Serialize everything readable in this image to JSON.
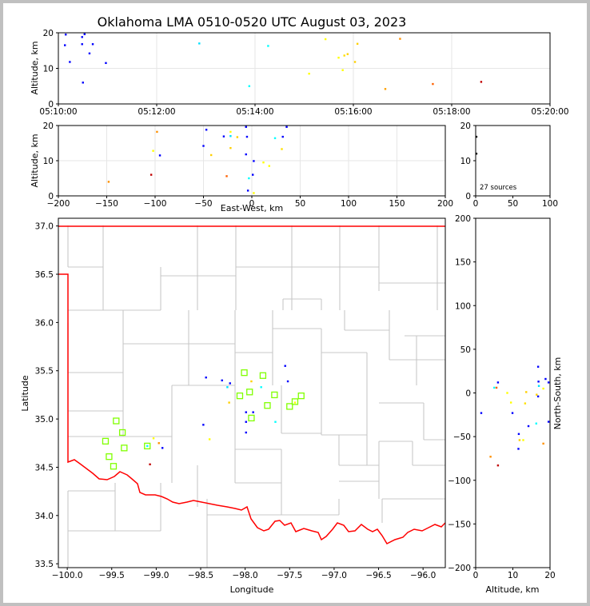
{
  "title": "Oklahoma LMA 0510-0520 UTC August 03, 2023",
  "colors": {
    "background": "#c0c0c0",
    "panel": "#ffffff",
    "border_state": "#ff0000",
    "county": "#c8c8c8",
    "grid": "#e6e6e6",
    "station": "#80ff00",
    "source_scale": [
      "#0000ff",
      "#00ffff",
      "#ffff00",
      "#ffd000",
      "#ff0000"
    ]
  },
  "chart_data": [
    {
      "type": "scatter",
      "panel": "time-height",
      "ylabel": "Altitude, km",
      "ylim": [
        0,
        20
      ],
      "yticks": [
        "0",
        "10",
        "20"
      ],
      "xlim": [
        "05:10:00",
        "05:20:00"
      ],
      "xticks": [
        "05:10:00",
        "05:12:00",
        "05:14:00",
        "05:16:00",
        "05:18:00",
        "05:20:00"
      ],
      "grid": true,
      "points": [
        {
          "t": "05:10:09",
          "alt": 19.5,
          "c": "#0000ff"
        },
        {
          "t": "05:10:08",
          "alt": 16.5,
          "c": "#0000ff"
        },
        {
          "t": "05:10:14",
          "alt": 11.8,
          "c": "#0000ff"
        },
        {
          "t": "05:10:29",
          "alt": 18.8,
          "c": "#0000ff"
        },
        {
          "t": "05:10:29",
          "alt": 16.8,
          "c": "#0000ff"
        },
        {
          "t": "05:10:32",
          "alt": 19.6,
          "c": "#0000ff"
        },
        {
          "t": "05:10:38",
          "alt": 14.2,
          "c": "#0000ff"
        },
        {
          "t": "05:10:42",
          "alt": 16.8,
          "c": "#0000ff"
        },
        {
          "t": "05:10:30",
          "alt": 6.0,
          "c": "#0000ff"
        },
        {
          "t": "05:10:58",
          "alt": 11.5,
          "c": "#0000ff"
        },
        {
          "t": "05:12:52",
          "alt": 17.0,
          "c": "#00e0ff"
        },
        {
          "t": "05:13:53",
          "alt": 5.0,
          "c": "#00ffff"
        },
        {
          "t": "05:14:16",
          "alt": 16.3,
          "c": "#00ffff"
        },
        {
          "t": "05:15:06",
          "alt": 8.5,
          "c": "#ffff00"
        },
        {
          "t": "05:15:26",
          "alt": 18.2,
          "c": "#ffff00"
        },
        {
          "t": "05:15:42",
          "alt": 13.0,
          "c": "#ffff00"
        },
        {
          "t": "05:15:47",
          "alt": 9.5,
          "c": "#ffff00"
        },
        {
          "t": "05:15:49",
          "alt": 13.6,
          "c": "#ffe000"
        },
        {
          "t": "05:15:53",
          "alt": 14.0,
          "c": "#ffd000"
        },
        {
          "t": "05:16:02",
          "alt": 11.8,
          "c": "#ffd000"
        },
        {
          "t": "05:16:05",
          "alt": 16.9,
          "c": "#ffd000"
        },
        {
          "t": "05:16:39",
          "alt": 4.2,
          "c": "#ffa000"
        },
        {
          "t": "05:16:57",
          "alt": 18.3,
          "c": "#ff9000"
        },
        {
          "t": "05:17:37",
          "alt": 5.6,
          "c": "#ff6000"
        },
        {
          "t": "05:18:36",
          "alt": 6.2,
          "c": "#c00000"
        }
      ]
    },
    {
      "type": "scatter",
      "panel": "east-west-height",
      "xlabel": "East-West, km",
      "ylabel": "Altitude, km",
      "xlim": [
        -200,
        200
      ],
      "ylim": [
        0,
        20
      ],
      "xticks": [
        "−200",
        "−150",
        "−100",
        "−50",
        "0",
        "50",
        "100",
        "150",
        "200"
      ],
      "yticks": [
        "0",
        "10",
        "20"
      ],
      "grid": true,
      "points": [
        {
          "x": -148,
          "alt": 4.0,
          "c": "#ff9000"
        },
        {
          "x": -98,
          "alt": 18.2,
          "c": "#ff9000"
        },
        {
          "x": -102,
          "alt": 12.8,
          "c": "#ffff00"
        },
        {
          "x": -95,
          "alt": 11.5,
          "c": "#0000ff"
        },
        {
          "x": -104,
          "alt": 6.0,
          "c": "#c00000"
        },
        {
          "x": -50,
          "alt": 14.2,
          "c": "#0000ff"
        },
        {
          "x": -47,
          "alt": 18.8,
          "c": "#0000ff"
        },
        {
          "x": -42,
          "alt": 11.6,
          "c": "#ffd000"
        },
        {
          "x": -29,
          "alt": 16.9,
          "c": "#0000ff"
        },
        {
          "x": -22,
          "alt": 18.2,
          "c": "#ffff00"
        },
        {
          "x": -22,
          "alt": 13.6,
          "c": "#ffd000"
        },
        {
          "x": -22,
          "alt": 17.0,
          "c": "#00e0ff"
        },
        {
          "x": -26,
          "alt": 5.6,
          "c": "#ff6000"
        },
        {
          "x": -15,
          "alt": 16.7,
          "c": "#ffd000"
        },
        {
          "x": -6,
          "alt": 19.6,
          "c": "#0000ff"
        },
        {
          "x": -5,
          "alt": 16.8,
          "c": "#0000ff"
        },
        {
          "x": -6,
          "alt": 11.8,
          "c": "#0000ff"
        },
        {
          "x": -4,
          "alt": 1.5,
          "c": "#0000ff"
        },
        {
          "x": -3,
          "alt": 5.0,
          "c": "#00ffff"
        },
        {
          "x": 2,
          "alt": 9.9,
          "c": "#0000ff"
        },
        {
          "x": 1,
          "alt": 6.0,
          "c": "#0000ff"
        },
        {
          "x": 2,
          "alt": 0.8,
          "c": "#ffff00"
        },
        {
          "x": 12,
          "alt": 9.5,
          "c": "#ffff00"
        },
        {
          "x": 18,
          "alt": 8.5,
          "c": "#ffff00"
        },
        {
          "x": 24,
          "alt": 16.4,
          "c": "#00ffff"
        },
        {
          "x": 31,
          "alt": 13.3,
          "c": "#ffe000"
        },
        {
          "x": 32,
          "alt": 16.8,
          "c": "#0000ff"
        },
        {
          "x": 36,
          "alt": 19.6,
          "c": "#0000ff"
        }
      ]
    },
    {
      "type": "histogram",
      "panel": "altitude-histogram",
      "xlim": [
        0,
        100
      ],
      "ylim": [
        0,
        20
      ],
      "xticks": [
        "0",
        "50",
        "100"
      ],
      "yticks": [
        "0",
        "10",
        "20"
      ],
      "annotation": "27 sources",
      "points": [
        {
          "count": 1,
          "alt": 16.8,
          "c": "#000000"
        },
        {
          "count": 1,
          "alt": 12.0,
          "c": "#000000"
        }
      ]
    },
    {
      "type": "scatter",
      "panel": "plan-view",
      "xlabel": "Longitude",
      "ylabel": "Latitude",
      "xlim": [
        -100.1,
        -95.75
      ],
      "ylim": [
        33.46,
        37.08
      ],
      "xticks": [
        "−100.0",
        "−99.5",
        "−99.0",
        "−98.5",
        "−98.0",
        "−97.5",
        "−97.0",
        "−96.5",
        "−96.0"
      ],
      "yticks": [
        "33.5",
        "34.0",
        "34.5",
        "35.0",
        "35.5",
        "36.0",
        "36.5",
        "37.0"
      ],
      "stations": [
        {
          "lon": -99.57,
          "lat": 34.77
        },
        {
          "lon": -99.53,
          "lat": 34.61
        },
        {
          "lon": -99.48,
          "lat": 34.51
        },
        {
          "lon": -99.45,
          "lat": 34.98
        },
        {
          "lon": -99.38,
          "lat": 34.86
        },
        {
          "lon": -99.36,
          "lat": 34.7
        },
        {
          "lon": -99.1,
          "lat": 34.72
        },
        {
          "lon": -98.06,
          "lat": 35.24
        },
        {
          "lon": -98.01,
          "lat": 35.48
        },
        {
          "lon": -97.95,
          "lat": 35.28
        },
        {
          "lon": -97.93,
          "lat": 35.01
        },
        {
          "lon": -97.8,
          "lat": 35.45
        },
        {
          "lon": -97.75,
          "lat": 35.14
        },
        {
          "lon": -97.67,
          "lat": 35.25
        },
        {
          "lon": -97.5,
          "lat": 35.13
        },
        {
          "lon": -97.44,
          "lat": 35.18
        },
        {
          "lon": -97.37,
          "lat": 35.24
        }
      ],
      "points": [
        {
          "lon": -98.44,
          "lat": 35.43,
          "c": "#0000ff"
        },
        {
          "lon": -98.26,
          "lat": 35.4,
          "c": "#0000ff"
        },
        {
          "lon": -98.2,
          "lat": 35.33,
          "c": "#00e0ff"
        },
        {
          "lon": -98.17,
          "lat": 35.37,
          "c": "#0000ff"
        },
        {
          "lon": -98.18,
          "lat": 35.17,
          "c": "#ffd000"
        },
        {
          "lon": -98.47,
          "lat": 34.94,
          "c": "#0000ff"
        },
        {
          "lon": -98.4,
          "lat": 34.79,
          "c": "#ffff00"
        },
        {
          "lon": -97.99,
          "lat": 35.07,
          "c": "#0000ff"
        },
        {
          "lon": -97.91,
          "lat": 35.07,
          "c": "#0000ff"
        },
        {
          "lon": -97.99,
          "lat": 34.97,
          "c": "#0000ff"
        },
        {
          "lon": -97.99,
          "lat": 34.86,
          "c": "#0000ff"
        },
        {
          "lon": -97.93,
          "lat": 35.39,
          "c": "#ffd000"
        },
        {
          "lon": -97.82,
          "lat": 35.33,
          "c": "#00ffff"
        },
        {
          "lon": -97.55,
          "lat": 35.55,
          "c": "#0000ff"
        },
        {
          "lon": -97.52,
          "lat": 35.39,
          "c": "#0000ff"
        },
        {
          "lon": -97.66,
          "lat": 34.97,
          "c": "#00ffff"
        },
        {
          "lon": -97.44,
          "lat": 35.17,
          "c": "#ffff00"
        },
        {
          "lon": -99.03,
          "lat": 34.8,
          "c": "#ffff00"
        },
        {
          "lon": -98.97,
          "lat": 34.75,
          "c": "#ff9000"
        },
        {
          "lon": -98.93,
          "lat": 34.7,
          "c": "#0000ff"
        },
        {
          "lon": -99.07,
          "lat": 34.53,
          "c": "#c00000"
        },
        {
          "lon": -99.1,
          "lat": 34.72,
          "c": "#00ffff"
        }
      ]
    },
    {
      "type": "scatter",
      "panel": "north-south-height",
      "xlabel": "Altitude, km",
      "ylabel": "North-South, km",
      "xlim": [
        0,
        20
      ],
      "ylim": [
        -200,
        200
      ],
      "xticks": [
        "0",
        "10",
        "20"
      ],
      "yticks": [
        "−200",
        "−150",
        "−100",
        "−50",
        "0",
        "50",
        "100",
        "150",
        "200"
      ],
      "points": [
        {
          "alt": 1.5,
          "y": -23,
          "c": "#0000ff"
        },
        {
          "alt": 4.0,
          "y": -73,
          "c": "#ff9000"
        },
        {
          "alt": 5.0,
          "y": 6,
          "c": "#00ffff"
        },
        {
          "alt": 5.6,
          "y": 6,
          "c": "#ff6000"
        },
        {
          "alt": 6.0,
          "y": 12,
          "c": "#0000ff"
        },
        {
          "alt": 6.0,
          "y": -83,
          "c": "#c00000"
        },
        {
          "alt": 8.5,
          "y": 0,
          "c": "#ffff00"
        },
        {
          "alt": 9.5,
          "y": -11,
          "c": "#ffff00"
        },
        {
          "alt": 9.9,
          "y": -23,
          "c": "#0000ff"
        },
        {
          "alt": 11.5,
          "y": -64,
          "c": "#0000ff"
        },
        {
          "alt": 11.6,
          "y": -47,
          "c": "#0000ff"
        },
        {
          "alt": 11.8,
          "y": -54,
          "c": "#ffd000"
        },
        {
          "alt": 12.8,
          "y": -54,
          "c": "#ffff00"
        },
        {
          "alt": 13.3,
          "y": -12,
          "c": "#ffe000"
        },
        {
          "alt": 13.6,
          "y": 1,
          "c": "#ffd000"
        },
        {
          "alt": 14.2,
          "y": -38,
          "c": "#0000ff"
        },
        {
          "alt": 16.3,
          "y": -35,
          "c": "#00ffff"
        },
        {
          "alt": 16.4,
          "y": -2,
          "c": "#ffd000"
        },
        {
          "alt": 16.8,
          "y": -4,
          "c": "#0000ff"
        },
        {
          "alt": 16.8,
          "y": 30,
          "c": "#0000ff"
        },
        {
          "alt": 16.9,
          "y": 13,
          "c": "#0000ff"
        },
        {
          "alt": 17.0,
          "y": 8,
          "c": "#00e0ff"
        },
        {
          "alt": 18.2,
          "y": 5,
          "c": "#ffff00"
        },
        {
          "alt": 18.2,
          "y": -58,
          "c": "#ff9000"
        },
        {
          "alt": 18.8,
          "y": 16,
          "c": "#0000ff"
        },
        {
          "alt": 19.6,
          "y": 12,
          "c": "#0000ff"
        },
        {
          "alt": 19.6,
          "y": -33,
          "c": "#0000ff"
        }
      ]
    }
  ]
}
